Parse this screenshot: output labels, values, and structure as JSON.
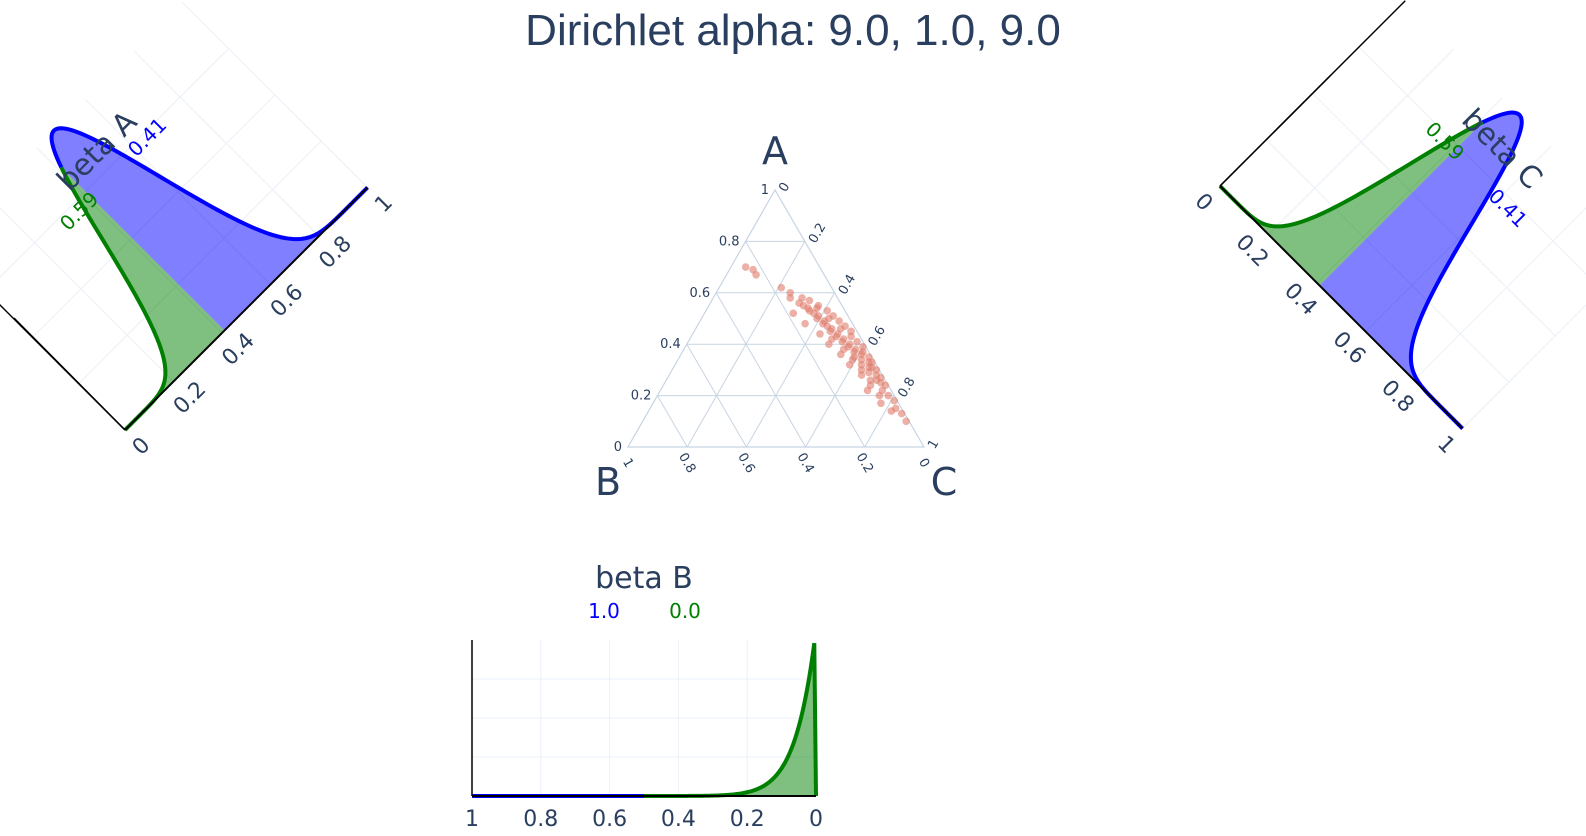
{
  "title": "Dirichlet alpha: 9.0, 1.0, 9.0",
  "colors": {
    "fill_low": "#008000",
    "fill_high": "#0000ff",
    "points": "#e07b6b",
    "grid": "#ebf0f8",
    "axis": "#000000",
    "ternary_grid": "#c8d4e3"
  },
  "chart_data": [
    {
      "type": "scatter",
      "kind": "ternary",
      "corner_labels": [
        "A",
        "B",
        "C"
      ],
      "axis_ticks": [
        "0",
        "0.2",
        "0.4",
        "0.6",
        "0.8",
        "1"
      ],
      "points_abc": [
        [
          0.7,
          0.25,
          0.05
        ],
        [
          0.69,
          0.23,
          0.08
        ],
        [
          0.67,
          0.23,
          0.1
        ],
        [
          0.62,
          0.17,
          0.21
        ],
        [
          0.6,
          0.15,
          0.25
        ],
        [
          0.58,
          0.16,
          0.26
        ],
        [
          0.56,
          0.14,
          0.3
        ],
        [
          0.55,
          0.13,
          0.32
        ],
        [
          0.54,
          0.12,
          0.34
        ],
        [
          0.53,
          0.12,
          0.35
        ],
        [
          0.52,
          0.11,
          0.37
        ],
        [
          0.51,
          0.1,
          0.39
        ],
        [
          0.5,
          0.11,
          0.39
        ],
        [
          0.49,
          0.09,
          0.42
        ],
        [
          0.48,
          0.1,
          0.42
        ],
        [
          0.47,
          0.09,
          0.44
        ],
        [
          0.46,
          0.08,
          0.46
        ],
        [
          0.45,
          0.09,
          0.46
        ],
        [
          0.44,
          0.07,
          0.49
        ],
        [
          0.43,
          0.08,
          0.49
        ],
        [
          0.42,
          0.06,
          0.52
        ],
        [
          0.41,
          0.07,
          0.52
        ],
        [
          0.4,
          0.05,
          0.55
        ],
        [
          0.39,
          0.06,
          0.55
        ],
        [
          0.38,
          0.04,
          0.58
        ],
        [
          0.37,
          0.05,
          0.58
        ],
        [
          0.36,
          0.03,
          0.61
        ],
        [
          0.35,
          0.06,
          0.59
        ],
        [
          0.34,
          0.04,
          0.62
        ],
        [
          0.33,
          0.02,
          0.65
        ],
        [
          0.32,
          0.05,
          0.63
        ],
        [
          0.31,
          0.03,
          0.66
        ],
        [
          0.3,
          0.01,
          0.69
        ],
        [
          0.29,
          0.04,
          0.67
        ],
        [
          0.28,
          0.02,
          0.7
        ],
        [
          0.27,
          0.01,
          0.72
        ],
        [
          0.26,
          0.03,
          0.71
        ],
        [
          0.25,
          0.02,
          0.73
        ],
        [
          0.24,
          0.01,
          0.75
        ],
        [
          0.22,
          0.03,
          0.75
        ],
        [
          0.2,
          0.02,
          0.78
        ],
        [
          0.18,
          0.01,
          0.81
        ],
        [
          0.15,
          0.02,
          0.83
        ],
        [
          0.13,
          0.01,
          0.86
        ],
        [
          0.1,
          0.01,
          0.89
        ],
        [
          0.58,
          0.12,
          0.3
        ],
        [
          0.57,
          0.1,
          0.33
        ],
        [
          0.55,
          0.08,
          0.37
        ],
        [
          0.53,
          0.06,
          0.41
        ],
        [
          0.51,
          0.05,
          0.44
        ],
        [
          0.49,
          0.04,
          0.47
        ],
        [
          0.47,
          0.03,
          0.5
        ],
        [
          0.45,
          0.02,
          0.53
        ],
        [
          0.43,
          0.03,
          0.54
        ],
        [
          0.41,
          0.02,
          0.57
        ],
        [
          0.39,
          0.01,
          0.6
        ],
        [
          0.37,
          0.02,
          0.61
        ],
        [
          0.35,
          0.01,
          0.64
        ],
        [
          0.33,
          0.01,
          0.66
        ],
        [
          0.31,
          0.02,
          0.67
        ],
        [
          0.52,
          0.18,
          0.3
        ],
        [
          0.48,
          0.16,
          0.36
        ],
        [
          0.44,
          0.13,
          0.43
        ],
        [
          0.4,
          0.12,
          0.48
        ],
        [
          0.36,
          0.1,
          0.54
        ],
        [
          0.32,
          0.09,
          0.59
        ],
        [
          0.28,
          0.07,
          0.65
        ],
        [
          0.24,
          0.06,
          0.7
        ],
        [
          0.2,
          0.05,
          0.75
        ],
        [
          0.17,
          0.06,
          0.77
        ],
        [
          0.14,
          0.04,
          0.82
        ],
        [
          0.26,
          0.05,
          0.69
        ],
        [
          0.3,
          0.06,
          0.64
        ],
        [
          0.34,
          0.07,
          0.59
        ],
        [
          0.46,
          0.05,
          0.49
        ],
        [
          0.5,
          0.07,
          0.43
        ],
        [
          0.54,
          0.09,
          0.37
        ],
        [
          0.42,
          0.1,
          0.48
        ],
        [
          0.38,
          0.08,
          0.54
        ],
        [
          0.22,
          0.08,
          0.7
        ]
      ]
    },
    {
      "type": "area",
      "name": "beta A",
      "split_labels": {
        "left": "0.59",
        "right": "0.41"
      },
      "split_at": 0.41,
      "alpha": 9,
      "beta": 10,
      "xlim": [
        0,
        1
      ],
      "tick_labels": [
        "0",
        "0.2",
        "0.4",
        "0.6",
        "0.8",
        "1"
      ]
    },
    {
      "type": "area",
      "name": "beta B",
      "split_labels": {
        "left": "1.0",
        "right": "0.0"
      },
      "split_at": 0.5,
      "alpha": 1,
      "beta": 18,
      "xlim": [
        1,
        0
      ],
      "tick_labels": [
        "1",
        "0.8",
        "0.6",
        "0.4",
        "0.2",
        "0"
      ]
    },
    {
      "type": "area",
      "name": "beta C",
      "split_labels": {
        "left": "0.59",
        "right": "0.41"
      },
      "split_at": 0.41,
      "alpha": 9,
      "beta": 10,
      "xlim": [
        0,
        1
      ],
      "tick_labels": [
        "0",
        "0.2",
        "0.4",
        "0.6",
        "0.8",
        "1"
      ]
    }
  ]
}
